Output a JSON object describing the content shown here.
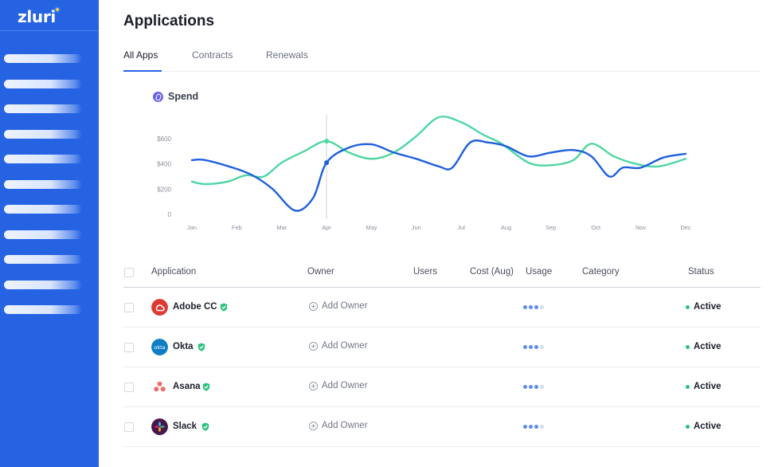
{
  "brand": {
    "name": "zluri"
  },
  "sidebar": {
    "items": [
      "",
      "",
      "",
      "",
      "",
      "",
      "",
      "",
      "",
      "",
      ""
    ]
  },
  "page": {
    "title": "Applications"
  },
  "tabs": [
    {
      "label": "All Apps",
      "active": true
    },
    {
      "label": "Contracts",
      "active": false
    },
    {
      "label": "Renewals",
      "active": false
    }
  ],
  "chart": {
    "legend_label": "Spend",
    "legend_icon": "spend-icon"
  },
  "chart_data": {
    "type": "line",
    "title": "Spend",
    "categories": [
      "Jan",
      "Feb",
      "Mar",
      "Apr",
      "May",
      "Jun",
      "Jul",
      "Aug",
      "Sep",
      "Oct",
      "Nov",
      "Dec"
    ],
    "y_ticks": [
      "0",
      "$200",
      "$400",
      "$600"
    ],
    "ylim": [
      0,
      600
    ],
    "highlight_category": "Apr",
    "series": [
      {
        "color": "#1d5fdb",
        "x": [
          0.0,
          0.3,
          1.0,
          1.4,
          1.8,
          2.3,
          2.7,
          3.0,
          3.5,
          4.0,
          4.5,
          5.0,
          5.5,
          5.8,
          6.2,
          6.6,
          7.0,
          7.5,
          8.0,
          8.5,
          8.9,
          9.3,
          9.6,
          10.0,
          10.5,
          11.0
        ],
        "values": [
          430,
          430,
          360,
          300,
          200,
          30,
          130,
          410,
          530,
          555,
          490,
          440,
          380,
          370,
          570,
          570,
          540,
          460,
          490,
          510,
          460,
          300,
          370,
          370,
          450,
          480
        ]
      },
      {
        "color": "#4fd6a3",
        "x": [
          0.0,
          0.3,
          0.8,
          1.2,
          1.6,
          2.0,
          2.5,
          3.0,
          3.5,
          4.0,
          4.5,
          5.0,
          5.5,
          6.0,
          6.5,
          6.9,
          7.5,
          8.0,
          8.5,
          8.9,
          9.4,
          9.9,
          10.4,
          11.0
        ],
        "values": [
          260,
          240,
          260,
          310,
          300,
          410,
          500,
          580,
          490,
          440,
          490,
          620,
          770,
          730,
          630,
          560,
          410,
          390,
          430,
          560,
          460,
          400,
          380,
          440
        ]
      }
    ]
  },
  "table": {
    "headers": {
      "application": "Application",
      "owner": "Owner",
      "users": "Users",
      "cost": "Cost (Aug)",
      "usage": "Usage",
      "category": "Category",
      "status": "Status"
    },
    "rows": [
      {
        "name": "Adobe CC",
        "logo": "adobe-cc-logo",
        "logo_color": "#dc3a32",
        "owner_label": "Add Owner",
        "usage_level": 3,
        "status": "Active"
      },
      {
        "name": "Okta",
        "logo": "okta-logo",
        "logo_color": "#0e7ec4",
        "owner_label": "Add Owner",
        "usage_level": 3,
        "status": "Active"
      },
      {
        "name": "Asana",
        "logo": "asana-logo",
        "logo_color": "#f06a6a",
        "owner_label": "Add Owner",
        "usage_level": 3,
        "status": "Active"
      },
      {
        "name": "Slack",
        "logo": "slack-logo",
        "logo_color": "#4a154b",
        "owner_label": "Add Owner",
        "usage_level": 3,
        "status": "Active"
      }
    ]
  },
  "colors": {
    "accent": "#2563e3",
    "status_active": "#2ec27e",
    "usage_filled": "#5b8def",
    "usage_empty": "#d5dbe6",
    "verified": "#2ec27e"
  }
}
